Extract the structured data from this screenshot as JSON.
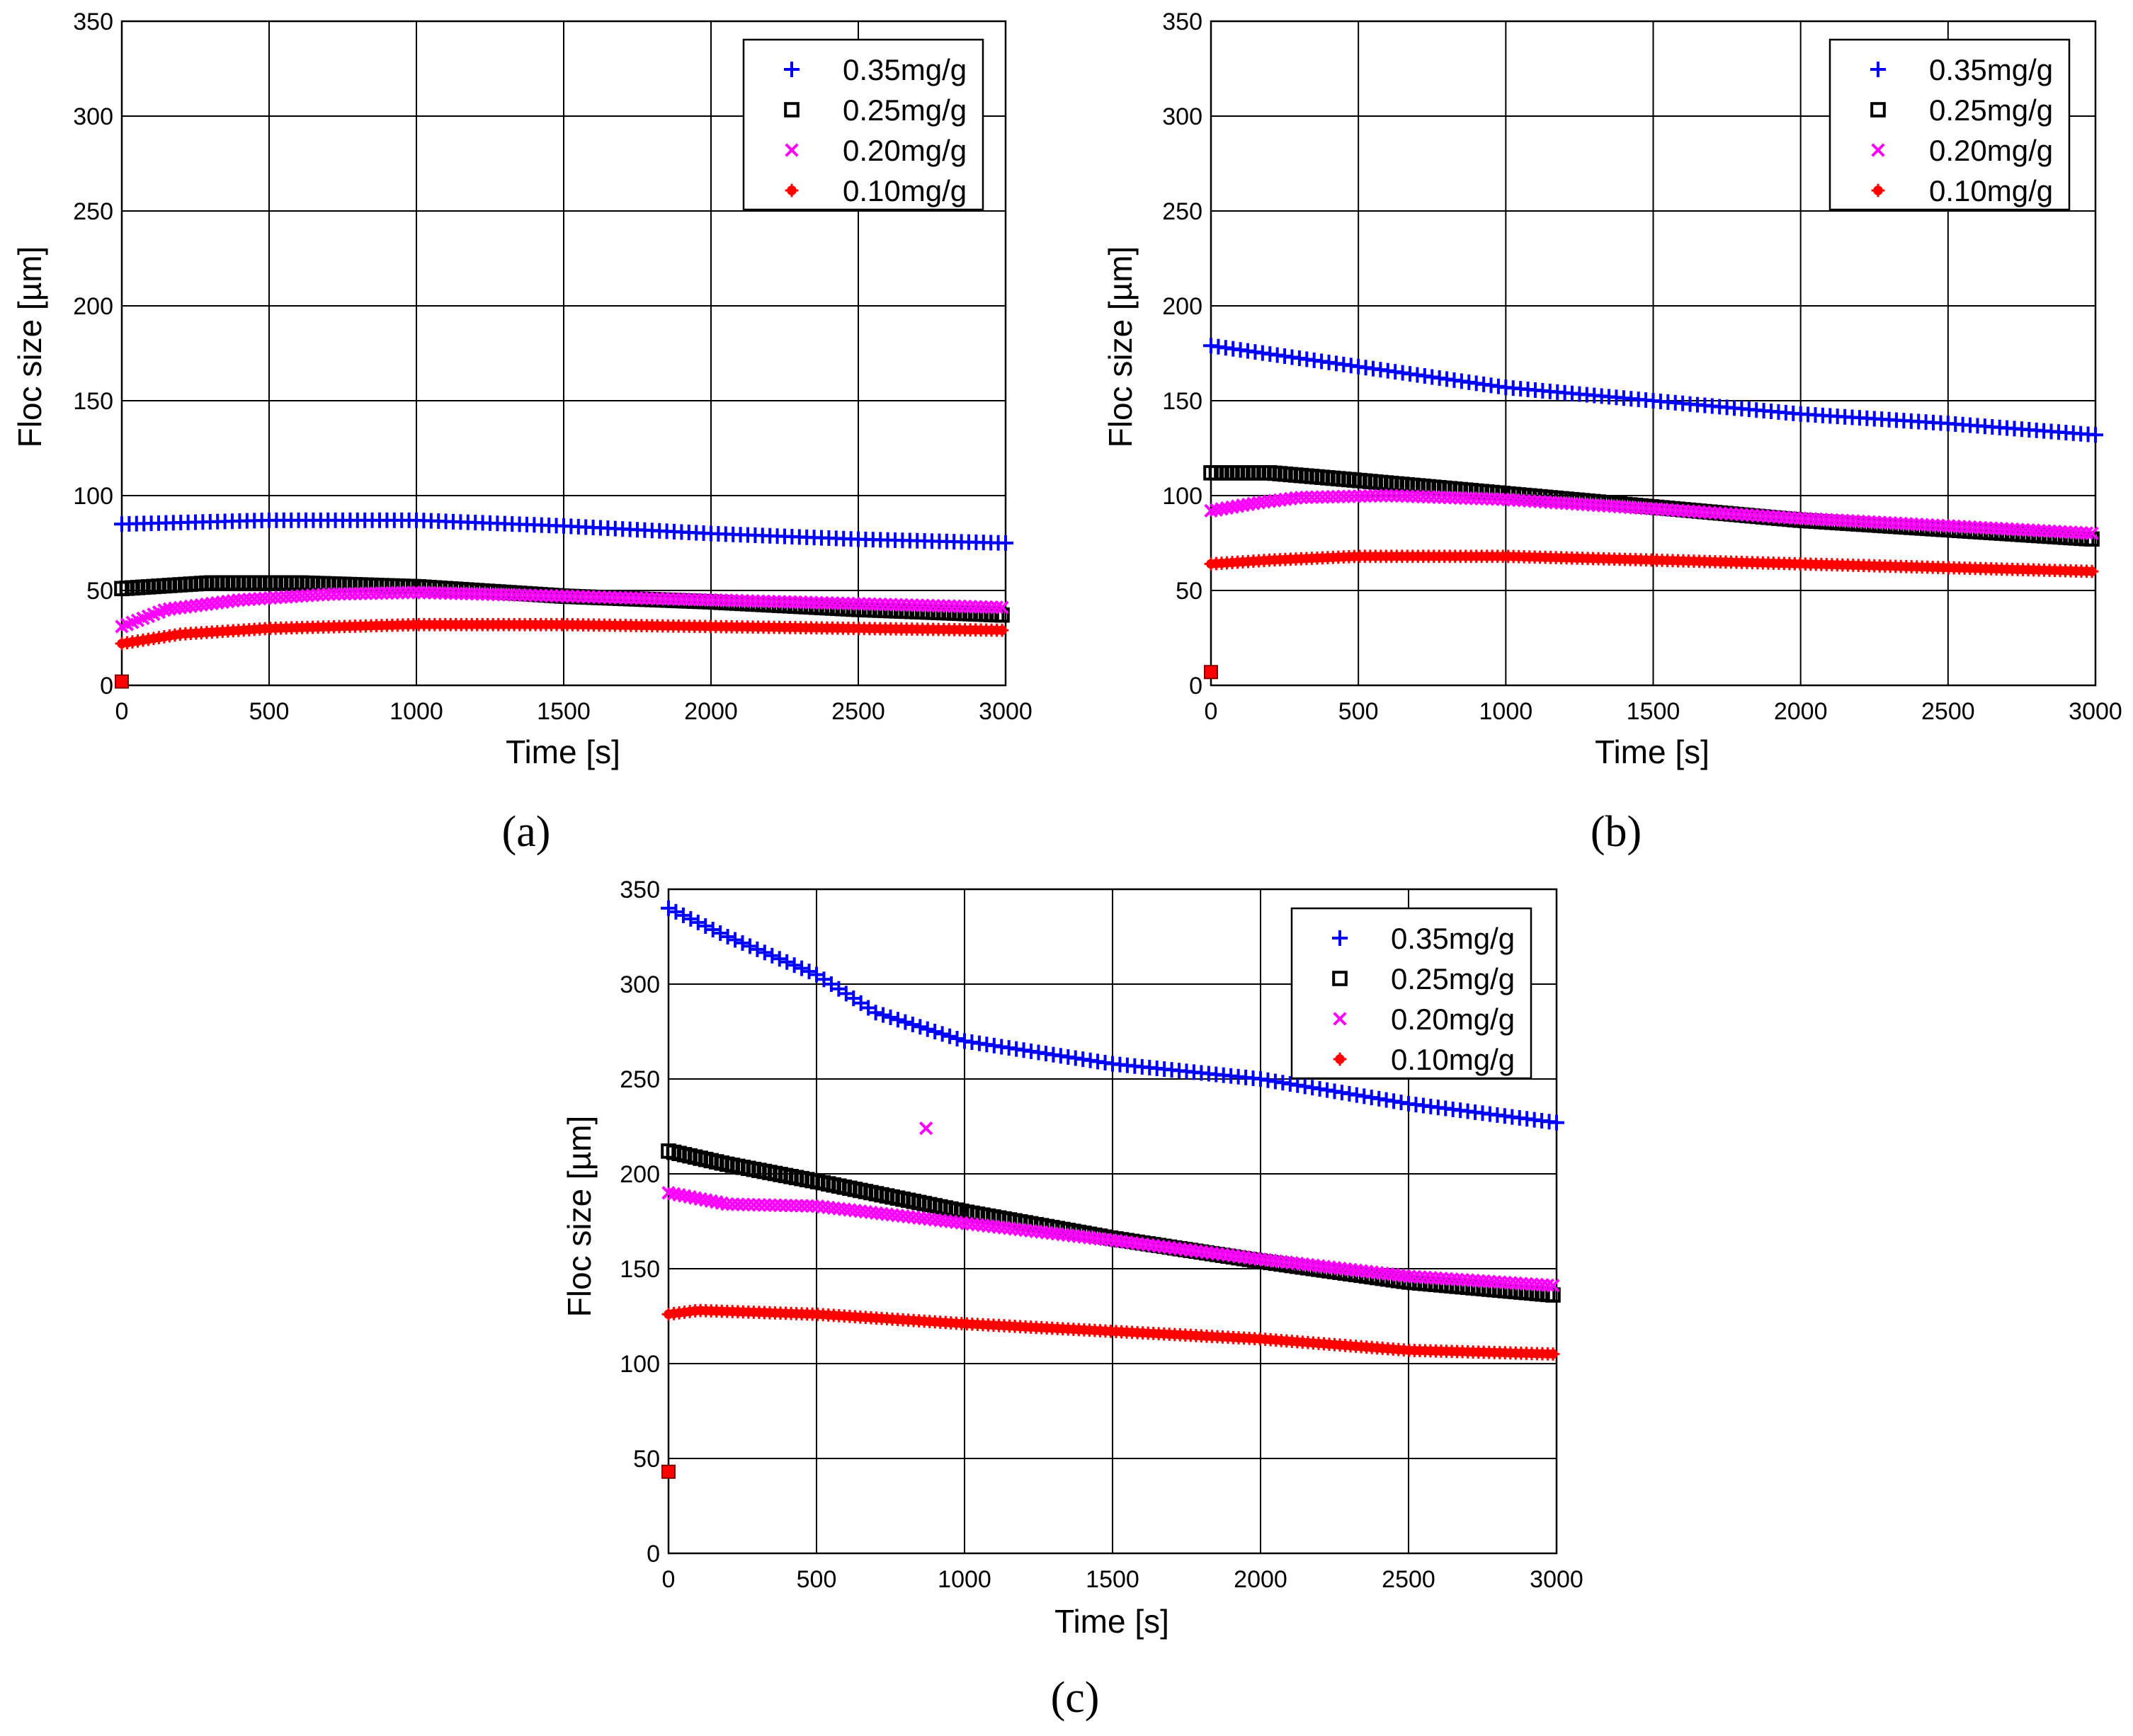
{
  "chart_data": [
    {
      "panel_label": "(a)",
      "type": "scatter",
      "xlabel": "Time [s]",
      "ylabel": "Floc size [µm]",
      "xlim": [
        0,
        3000
      ],
      "ylim": [
        0,
        350
      ],
      "xticks": [
        "0",
        "500",
        "1000",
        "1500",
        "2000",
        "2500",
        "3000"
      ],
      "yticks": [
        "0",
        "50",
        "100",
        "150",
        "200",
        "250",
        "300",
        "350"
      ],
      "grid": true,
      "legend_position": "top-right",
      "initial_point": {
        "x": 0,
        "y": 2
      },
      "series": [
        {
          "name": "0.35mg/g",
          "marker": "plus",
          "color": "#0000ff",
          "x": [
            0,
            500,
            1000,
            1500,
            2000,
            2500,
            3000
          ],
          "y": [
            85,
            87,
            87,
            84,
            80,
            77,
            75
          ]
        },
        {
          "name": "0.25mg/g",
          "marker": "square",
          "color": "#000000",
          "x": [
            0,
            300,
            600,
            1000,
            1500,
            2000,
            2500,
            3000
          ],
          "y": [
            51,
            54,
            54,
            52,
            47,
            44,
            40,
            37
          ]
        },
        {
          "name": "0.20mg/g",
          "marker": "x",
          "color": "#ff00ff",
          "x": [
            0,
            150,
            400,
            700,
            1000,
            1500,
            2000,
            2500,
            3000
          ],
          "y": [
            31,
            40,
            45,
            48,
            49,
            47,
            45,
            43,
            41
          ]
        },
        {
          "name": "0.10mg/g",
          "marker": "star",
          "color": "#ff0000",
          "x": [
            0,
            200,
            500,
            1000,
            1500,
            2000,
            2500,
            3000
          ],
          "y": [
            22,
            27,
            30,
            32,
            32,
            31,
            30,
            29
          ]
        }
      ]
    },
    {
      "panel_label": "(b)",
      "type": "scatter",
      "xlabel": "Time [s]",
      "ylabel": "Floc size [µm]",
      "xlim": [
        0,
        3000
      ],
      "ylim": [
        0,
        350
      ],
      "xticks": [
        "0",
        "500",
        "1000",
        "1500",
        "2000",
        "2500",
        "3000"
      ],
      "yticks": [
        "0",
        "50",
        "100",
        "150",
        "200",
        "250",
        "300",
        "350"
      ],
      "grid": true,
      "legend_position": "top-right",
      "initial_point": {
        "x": 0,
        "y": 7
      },
      "series": [
        {
          "name": "0.35mg/g",
          "marker": "plus",
          "color": "#0000ff",
          "x": [
            0,
            500,
            1000,
            1500,
            2000,
            2500,
            3000
          ],
          "y": [
            179,
            168,
            157,
            150,
            143,
            138,
            132
          ]
        },
        {
          "name": "0.25mg/g",
          "marker": "square",
          "color": "#000000",
          "x": [
            0,
            200,
            500,
            1000,
            1500,
            2000,
            2500,
            3000
          ],
          "y": [
            112,
            112,
            108,
            101,
            94,
            87,
            82,
            77
          ]
        },
        {
          "name": "0.20mg/g",
          "marker": "x",
          "color": "#ff00ff",
          "x": [
            0,
            150,
            300,
            600,
            1000,
            1500,
            2000,
            2500,
            3000
          ],
          "y": [
            92,
            96,
            99,
            100,
            98,
            93,
            88,
            84,
            80
          ]
        },
        {
          "name": "0.10mg/g",
          "marker": "star",
          "color": "#ff0000",
          "x": [
            0,
            200,
            500,
            1000,
            1500,
            2000,
            2500,
            3000
          ],
          "y": [
            64,
            66,
            68,
            68,
            66,
            64,
            62,
            60
          ]
        }
      ]
    },
    {
      "panel_label": "(c)",
      "type": "scatter",
      "xlabel": "Time [s]",
      "ylabel": "Floc size [µm]",
      "xlim": [
        0,
        3000
      ],
      "ylim": [
        0,
        350
      ],
      "xticks": [
        "0",
        "500",
        "1000",
        "1500",
        "2000",
        "2500",
        "3000"
      ],
      "yticks": [
        "0",
        "50",
        "100",
        "150",
        "200",
        "250",
        "300",
        "350"
      ],
      "grid": true,
      "legend_position": "top-right",
      "initial_point": {
        "x": 0,
        "y": 43
      },
      "series": [
        {
          "name": "0.35mg/g",
          "marker": "plus",
          "color": "#0000ff",
          "x": [
            0,
            200,
            500,
            700,
            1000,
            1500,
            2000,
            2500,
            3000
          ],
          "y": [
            340,
            325,
            305,
            285,
            270,
            258,
            250,
            237,
            227
          ]
        },
        {
          "name": "0.25mg/g",
          "marker": "square",
          "color": "#000000",
          "x": [
            0,
            200,
            500,
            1000,
            1500,
            2000,
            2500,
            3000
          ],
          "y": [
            212,
            205,
            196,
            180,
            166,
            154,
            143,
            136
          ]
        },
        {
          "name": "0.20mg/g",
          "marker": "x",
          "color": "#ff00ff",
          "x": [
            0,
            200,
            500,
            1000,
            1500,
            2000,
            2500,
            3000
          ],
          "y": [
            190,
            184,
            183,
            174,
            165,
            155,
            146,
            141
          ]
        },
        {
          "name": "0.10mg/g",
          "marker": "star",
          "color": "#ff0000",
          "x": [
            0,
            100,
            500,
            1000,
            1500,
            2000,
            2500,
            3000
          ],
          "y": [
            126,
            128,
            126,
            121,
            117,
            113,
            107,
            105
          ]
        }
      ],
      "outliers": [
        {
          "series": "0.20mg/g",
          "x": 870,
          "y": 224
        }
      ]
    }
  ]
}
